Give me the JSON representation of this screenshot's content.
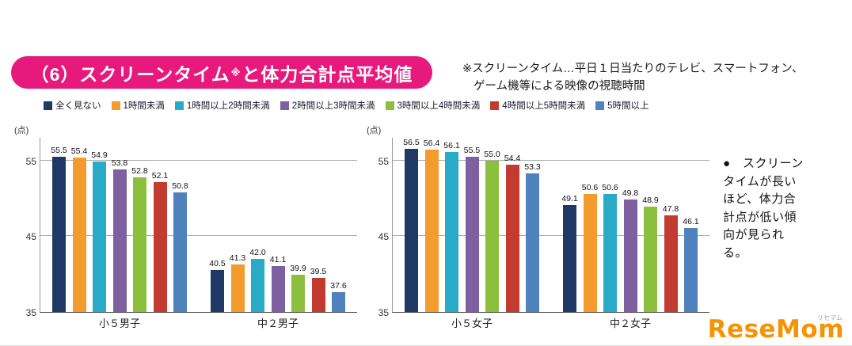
{
  "page": {
    "title_prefix": "（6）スクリーンタイム",
    "title_sup": "※",
    "title_suffix": "と体力合計点平均値",
    "note_line1": "※スクリーンタイム…平日１日当たりのテレビ、スマートフォン、",
    "note_line2": "ゲーム機等による映像の視聴時間",
    "observation": "●　スクリーンタイムが長いほど、体力合計点が低い傾向が見られる。",
    "logo_text": "ReseMom",
    "logo_sub": "リセマム"
  },
  "legend": [
    {
      "label": "全く見ない",
      "color": "#1F3864"
    },
    {
      "label": "1時間未満",
      "color": "#F39B2D"
    },
    {
      "label": "1時間以上2時間未満",
      "color": "#29ABC7"
    },
    {
      "label": "2時間以上3時間未満",
      "color": "#7D60A0"
    },
    {
      "label": "3時間以上4時間未満",
      "color": "#8DBF3E"
    },
    {
      "label": "4時間以上5時間未満",
      "color": "#C23B2E"
    },
    {
      "label": "5時間以上",
      "color": "#4F81BD"
    }
  ],
  "chart_data": [
    {
      "type": "bar",
      "title": "",
      "unit_label": "(点)",
      "categories": [
        "小５男子",
        "中２男子"
      ],
      "series": [
        {
          "name": "全く見ない",
          "color": "#1F3864",
          "values": [
            55.5,
            40.5
          ]
        },
        {
          "name": "1時間未満",
          "color": "#F39B2D",
          "values": [
            55.4,
            41.3
          ]
        },
        {
          "name": "1時間以上2時間未満",
          "color": "#29ABC7",
          "values": [
            54.9,
            42.0
          ]
        },
        {
          "name": "2時間以上3時間未満",
          "color": "#7D60A0",
          "values": [
            53.8,
            41.1
          ]
        },
        {
          "name": "3時間以上4時間未満",
          "color": "#8DBF3E",
          "values": [
            52.8,
            39.9
          ]
        },
        {
          "name": "4時間以上5時間未満",
          "color": "#C23B2E",
          "values": [
            52.1,
            39.5
          ]
        },
        {
          "name": "5時間以上",
          "color": "#4F81BD",
          "values": [
            50.8,
            37.6
          ]
        }
      ],
      "ylim": [
        35,
        58
      ],
      "yticks": [
        35,
        45,
        55
      ],
      "gridlines": [
        45,
        55
      ],
      "legend_position": "top",
      "grid": true
    },
    {
      "type": "bar",
      "title": "",
      "unit_label": "(点)",
      "categories": [
        "小５女子",
        "中２女子"
      ],
      "series": [
        {
          "name": "全く見ない",
          "color": "#1F3864",
          "values": [
            56.5,
            49.1
          ]
        },
        {
          "name": "1時間未満",
          "color": "#F39B2D",
          "values": [
            56.4,
            50.6
          ]
        },
        {
          "name": "1時間以上2時間未満",
          "color": "#29ABC7",
          "values": [
            56.1,
            50.6
          ]
        },
        {
          "name": "2時間以上3時間未満",
          "color": "#7D60A0",
          "values": [
            55.5,
            49.8
          ]
        },
        {
          "name": "3時間以上4時間未満",
          "color": "#8DBF3E",
          "values": [
            55.0,
            48.9
          ]
        },
        {
          "name": "4時間以上5時間未満",
          "color": "#C23B2E",
          "values": [
            54.4,
            47.8
          ]
        },
        {
          "name": "5時間以上",
          "color": "#4F81BD",
          "values": [
            53.3,
            46.1
          ]
        }
      ],
      "ylim": [
        35,
        58
      ],
      "yticks": [
        35,
        45,
        55
      ],
      "gridlines": [
        45,
        55
      ],
      "legend_position": "top",
      "grid": true
    }
  ]
}
